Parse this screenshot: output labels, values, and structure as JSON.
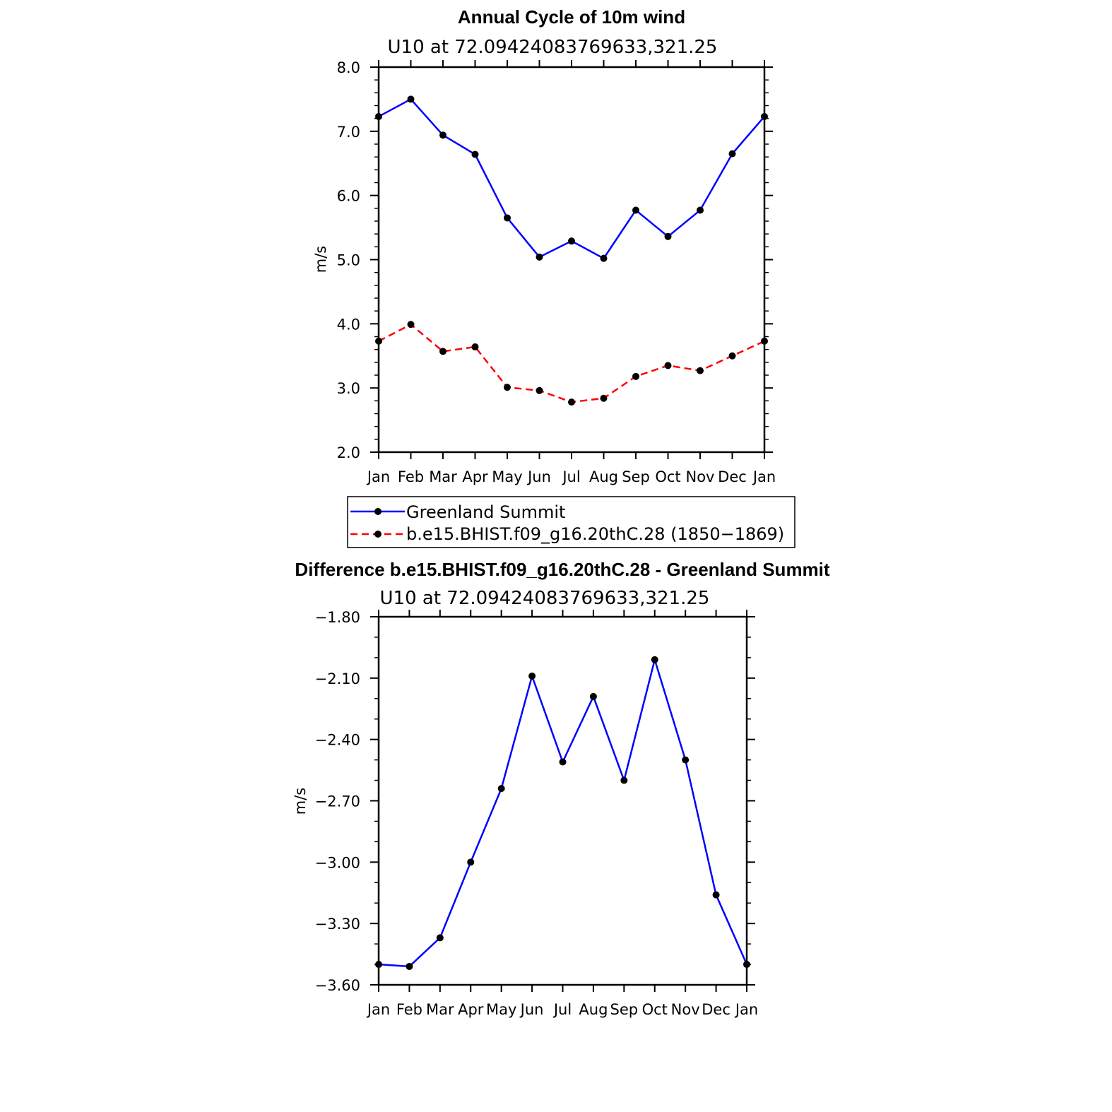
{
  "chart_data": [
    {
      "type": "line",
      "title": "Annual Cycle of 10m wind",
      "subtitle": "U10 at 72.09424083769633,321.25",
      "xlabel": "",
      "ylabel": "m/s",
      "categories": [
        "Jan",
        "Feb",
        "Mar",
        "Apr",
        "May",
        "Jun",
        "Jul",
        "Aug",
        "Sep",
        "Oct",
        "Nov",
        "Dec",
        "Jan"
      ],
      "ylim": [
        2.0,
        8.0
      ],
      "yticks": [
        "2.0",
        "3.0",
        "4.0",
        "5.0",
        "6.0",
        "7.0",
        "8.0"
      ],
      "grid": false,
      "legend_position": "bottom",
      "series": [
        {
          "name": "Greenland Summit",
          "color": "#0000ff",
          "style": "solid",
          "values": [
            7.23,
            7.5,
            6.94,
            6.64,
            5.65,
            5.04,
            5.29,
            5.02,
            5.77,
            5.36,
            5.77,
            6.65,
            7.23
          ]
        },
        {
          "name": "b.e15.BHIST.f09_g16.20thC.28 (1850−1869)",
          "color": "#ff0000",
          "style": "dashed",
          "values": [
            3.73,
            3.99,
            3.57,
            3.64,
            3.01,
            2.96,
            2.78,
            2.84,
            3.18,
            3.35,
            3.27,
            3.5,
            3.73
          ]
        }
      ]
    },
    {
      "type": "line",
      "title": "Difference b.e15.BHIST.f09_g16.20thC.28 - Greenland Summit",
      "subtitle": "U10 at 72.09424083769633,321.25",
      "xlabel": "",
      "ylabel": "m/s",
      "categories": [
        "Jan",
        "Feb",
        "Mar",
        "Apr",
        "May",
        "Jun",
        "Jul",
        "Aug",
        "Sep",
        "Oct",
        "Nov",
        "Dec",
        "Jan"
      ],
      "ylim": [
        -3.6,
        -1.8
      ],
      "yticks": [
        "−3.60",
        "−3.30",
        "−3.00",
        "−2.70",
        "−2.40",
        "−2.10",
        "−1.80"
      ],
      "grid": false,
      "series": [
        {
          "name": "Difference",
          "color": "#0000ff",
          "style": "solid",
          "values": [
            -3.5,
            -3.51,
            -3.37,
            -3.0,
            -2.64,
            -2.09,
            -2.51,
            -2.19,
            -2.6,
            -2.01,
            -2.5,
            -3.16,
            -3.5
          ]
        }
      ]
    }
  ]
}
